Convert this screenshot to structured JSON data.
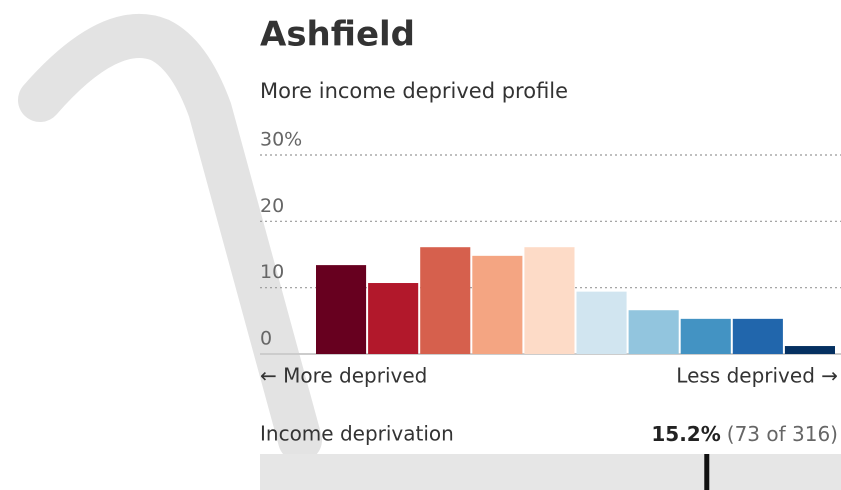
{
  "chart_data": {
    "type": "bar",
    "title": "Ashfield",
    "subtitle": "More income deprived profile",
    "categories": [
      null,
      null,
      null,
      null,
      null,
      null,
      null,
      null,
      null,
      null
    ],
    "values": [
      13.4,
      10.7,
      16.1,
      14.8,
      16.1,
      9.4,
      6.6,
      5.3,
      5.3,
      1.2
    ],
    "colors": [
      "#67001f",
      "#b2182b",
      "#d6604d",
      "#f4a582",
      "#fddbc7",
      "#d1e5f0",
      "#92c5de",
      "#4393c3",
      "#2166ac",
      "#053061"
    ],
    "ylim": [
      0,
      30
    ],
    "yticks": [
      0,
      10,
      20,
      {
        "value": 30,
        "label": "30%"
      }
    ],
    "grid": true,
    "x_left_label": "← More deprived",
    "x_right_label": "Less deprived →"
  },
  "indicator": {
    "label": "Income deprivation",
    "value": "15.2%",
    "rank_text": "(73 of 316)",
    "rank": 73,
    "total": 316
  }
}
